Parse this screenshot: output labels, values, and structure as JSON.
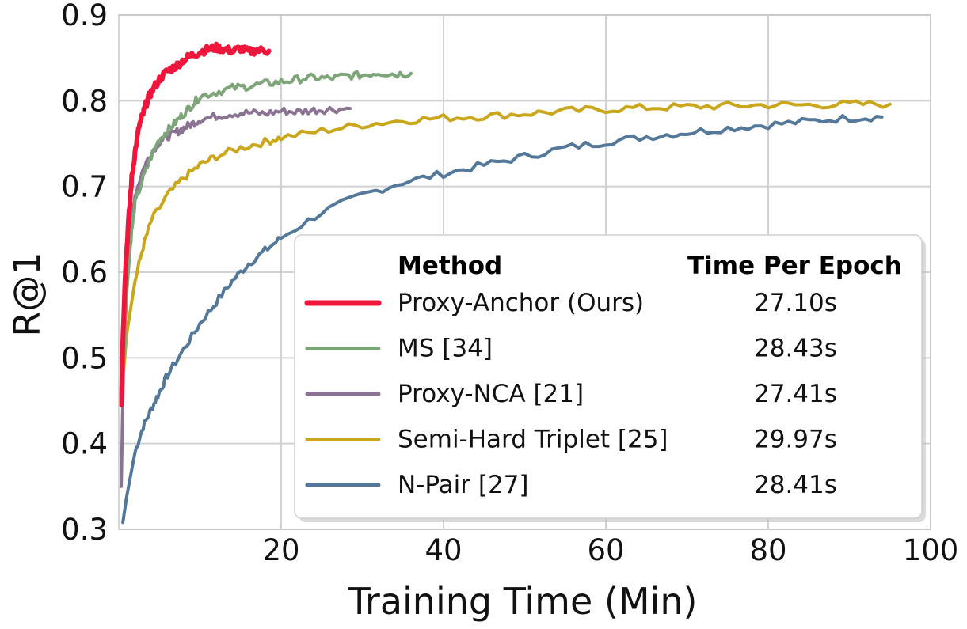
{
  "chart_data": {
    "type": "line",
    "xlabel": "Training Time (Min)",
    "ylabel": "R@1",
    "xlim": [
      0,
      100
    ],
    "ylim": [
      0.3,
      0.9
    ],
    "grid": true,
    "x_ticks": [
      20,
      40,
      60,
      80,
      100
    ],
    "x_tick_labels": [
      "20",
      "40",
      "60",
      "80",
      "100"
    ],
    "y_ticks": [
      0.3,
      0.4,
      0.5,
      0.6,
      0.7,
      0.8,
      0.9
    ],
    "y_tick_labels": [
      "0.3",
      "0.4",
      "0.5",
      "0.6",
      "0.7",
      "0.8",
      "0.9"
    ],
    "legend": {
      "placement": "lower-right",
      "method_header": "Method",
      "time_header": "Time Per Epoch"
    },
    "series": [
      {
        "name": "Proxy-Anchor (Ours)",
        "time_per_epoch": "27.10s",
        "color": "#f0153a",
        "x": [
          0.3,
          0.5,
          0.8,
          1.2,
          1.6,
          2.0,
          2.5,
          3,
          3.5,
          4,
          5,
          6,
          7,
          8,
          9,
          10,
          11,
          12,
          13,
          14,
          15,
          16,
          17,
          18.5
        ],
        "y": [
          0.445,
          0.52,
          0.6,
          0.66,
          0.71,
          0.74,
          0.77,
          0.785,
          0.8,
          0.81,
          0.825,
          0.835,
          0.84,
          0.848,
          0.853,
          0.857,
          0.86,
          0.862,
          0.86,
          0.858,
          0.861,
          0.857,
          0.859,
          0.858
        ]
      },
      {
        "name": "MS [34]",
        "time_per_epoch": "28.43s",
        "color": "#7ea57a",
        "x": [
          0.5,
          1,
          1.5,
          2,
          3,
          4,
          5,
          6,
          7,
          8,
          9,
          10,
          12,
          14,
          16,
          18,
          20,
          22,
          24,
          26,
          28,
          30,
          32,
          34,
          36
        ],
        "y": [
          0.48,
          0.58,
          0.64,
          0.68,
          0.71,
          0.735,
          0.755,
          0.765,
          0.775,
          0.785,
          0.795,
          0.805,
          0.81,
          0.815,
          0.817,
          0.82,
          0.822,
          0.825,
          0.827,
          0.826,
          0.829,
          0.83,
          0.833,
          0.831,
          0.832
        ]
      },
      {
        "name": "Proxy-NCA [21]",
        "time_per_epoch": "27.41s",
        "color": "#8a7393",
        "x": [
          0.3,
          0.6,
          1,
          1.5,
          2,
          3,
          4,
          5,
          6,
          7,
          8,
          9,
          10,
          12,
          14,
          16,
          18,
          20,
          22,
          24,
          26,
          28.5
        ],
        "y": [
          0.35,
          0.5,
          0.6,
          0.66,
          0.69,
          0.72,
          0.74,
          0.752,
          0.758,
          0.763,
          0.768,
          0.773,
          0.778,
          0.782,
          0.785,
          0.786,
          0.785,
          0.788,
          0.787,
          0.789,
          0.79,
          0.791
        ]
      },
      {
        "name": "Semi-Hard Triplet [25]",
        "time_per_epoch": "29.97s",
        "color": "#c9a61b",
        "x": [
          0.5,
          1,
          2,
          3,
          4,
          6,
          8,
          10,
          12,
          15,
          18,
          20,
          25,
          30,
          35,
          40,
          45,
          50,
          55,
          60,
          65,
          70,
          75,
          80,
          85,
          90,
          95
        ],
        "y": [
          0.475,
          0.53,
          0.59,
          0.63,
          0.66,
          0.69,
          0.71,
          0.725,
          0.735,
          0.745,
          0.752,
          0.757,
          0.765,
          0.772,
          0.777,
          0.78,
          0.782,
          0.785,
          0.788,
          0.79,
          0.792,
          0.793,
          0.794,
          0.795,
          0.795,
          0.796,
          0.796
        ]
      },
      {
        "name": "N-Pair [27]",
        "time_per_epoch": "28.41s",
        "color": "#54789a",
        "x": [
          0.5,
          1,
          2,
          3,
          4,
          5,
          6,
          8,
          10,
          12,
          14,
          16,
          18,
          20,
          25,
          30,
          35,
          40,
          45,
          50,
          55,
          60,
          65,
          70,
          75,
          80,
          85,
          90,
          94
        ],
        "y": [
          0.308,
          0.34,
          0.39,
          0.42,
          0.44,
          0.46,
          0.48,
          0.51,
          0.54,
          0.565,
          0.59,
          0.61,
          0.625,
          0.64,
          0.67,
          0.69,
          0.705,
          0.715,
          0.725,
          0.735,
          0.745,
          0.752,
          0.758,
          0.763,
          0.768,
          0.772,
          0.776,
          0.78,
          0.781
        ]
      }
    ]
  }
}
